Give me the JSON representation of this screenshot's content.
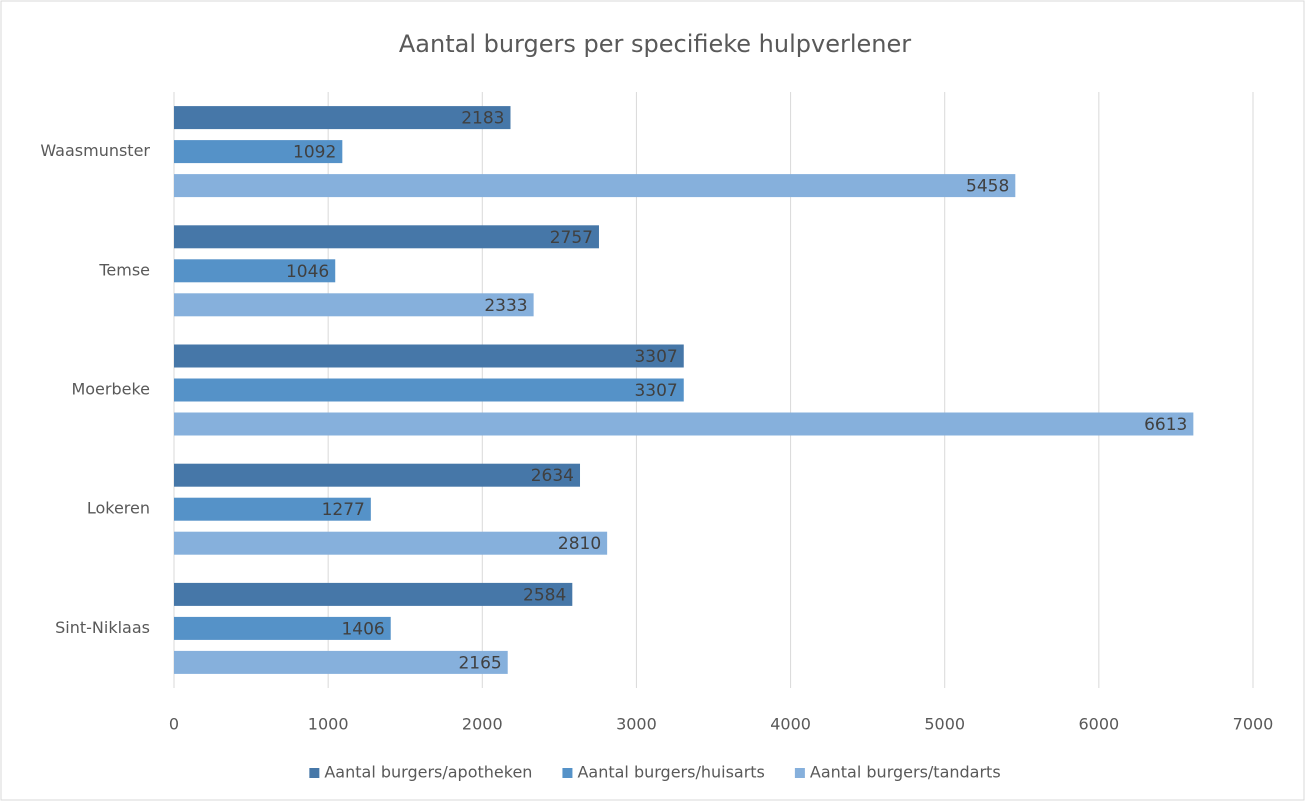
{
  "chart_data": {
    "type": "bar",
    "orientation": "horizontal",
    "title": "Aantal burgers per specifieke hulpverlener",
    "categories": [
      "Waasmunster",
      "Temse",
      "Moerbeke",
      "Lokeren",
      "Sint-Niklaas"
    ],
    "series": [
      {
        "name": "Aantal burgers/apotheken",
        "color": "#4677a8",
        "values": [
          2183,
          2757,
          3307,
          2634,
          2584
        ]
      },
      {
        "name": "Aantal burgers/huisarts",
        "color": "#5592c8",
        "values": [
          1092,
          1046,
          3307,
          1277,
          1406
        ]
      },
      {
        "name": "Aantal burgers/tandarts",
        "color": "#86b0dc",
        "values": [
          5458,
          2333,
          6613,
          2810,
          2165
        ]
      }
    ],
    "xlim": [
      0,
      7000
    ],
    "xticks": [
      0,
      1000,
      2000,
      3000,
      4000,
      5000,
      6000,
      7000
    ],
    "grid": true,
    "legend": "bottom",
    "data_labels": true
  }
}
